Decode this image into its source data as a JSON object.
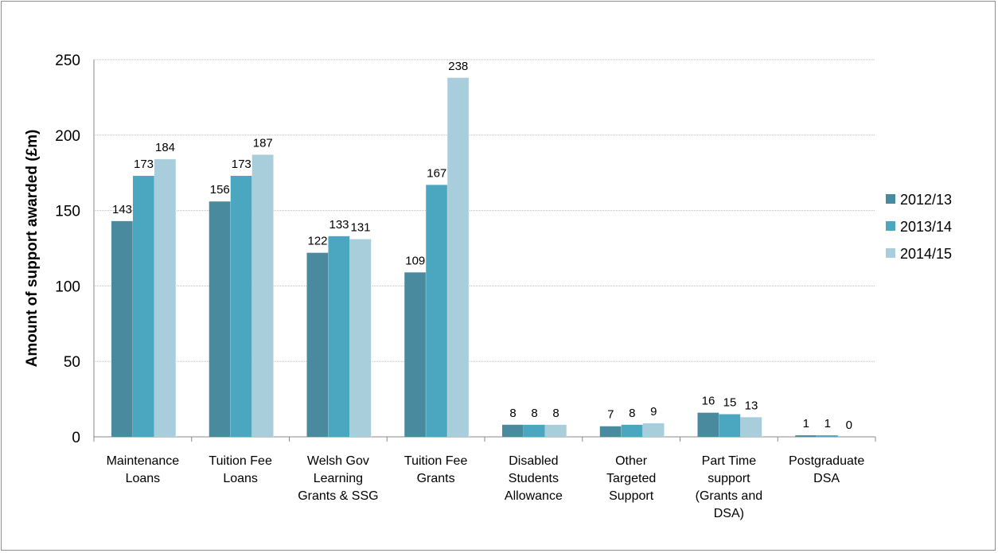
{
  "chart_data": {
    "type": "bar",
    "title": "",
    "xlabel": "",
    "ylabel": "Amount of support awarded (£m)",
    "ylim": [
      0,
      250
    ],
    "yticks": [
      0,
      50,
      100,
      150,
      200,
      250
    ],
    "grid": true,
    "legend_position": "right",
    "categories": [
      [
        "Maintenance",
        "Loans"
      ],
      [
        "Tuition Fee",
        "Loans"
      ],
      [
        "Welsh Gov",
        "Learning",
        "Grants & SSG"
      ],
      [
        "Tuition Fee",
        "Grants"
      ],
      [
        "Disabled",
        "Students",
        "Allowance"
      ],
      [
        "Other",
        "Targeted",
        "Support"
      ],
      [
        "Part Time",
        "support",
        "(Grants and",
        "DSA)"
      ],
      [
        "Postgraduate",
        "DSA"
      ]
    ],
    "series": [
      {
        "name": "2012/13",
        "color": "#4a8a9f",
        "values": [
          143,
          156,
          122,
          109,
          8,
          7,
          16,
          1
        ]
      },
      {
        "name": "2013/14",
        "color": "#4ba7c0",
        "values": [
          173,
          173,
          133,
          167,
          8,
          8,
          15,
          1
        ]
      },
      {
        "name": "2014/15",
        "color": "#a8cedb",
        "values": [
          184,
          187,
          131,
          238,
          8,
          9,
          13,
          0
        ]
      }
    ]
  }
}
